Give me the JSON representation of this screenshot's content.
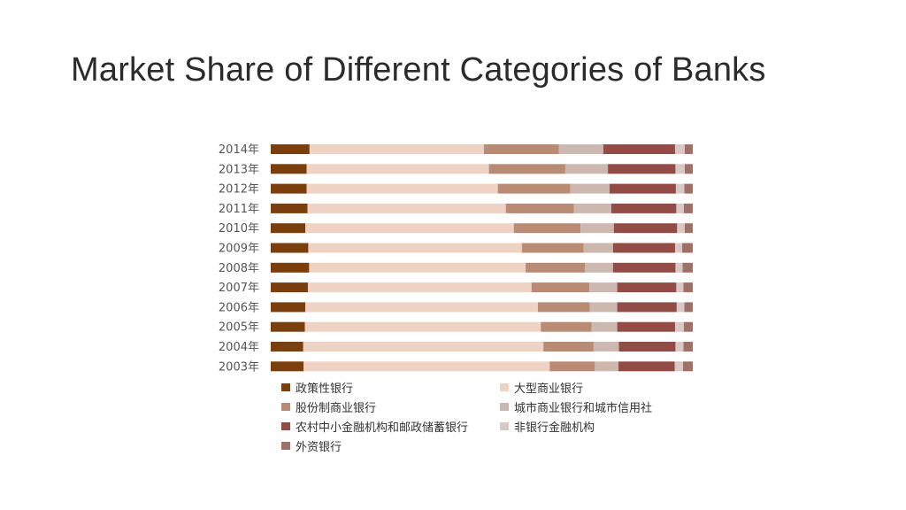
{
  "slide": {
    "title": "Market Share of Different Categories of Banks"
  },
  "chart_data": {
    "type": "bar",
    "orientation": "horizontal",
    "stacked": true,
    "percent_stacked": true,
    "title": "",
    "xlabel": "",
    "ylabel": "",
    "xlim": [
      0,
      100
    ],
    "grid": false,
    "legend_position": "bottom",
    "categories": [
      "2014年",
      "2013年",
      "2012年",
      "2011年",
      "2010年",
      "2009年",
      "2008年",
      "2007年",
      "2006年",
      "2005年",
      "2004年",
      "2003年"
    ],
    "series": [
      {
        "name": "政策性银行",
        "color": "#7a3f0c",
        "values": [
          9.2,
          8.5,
          8.5,
          8.7,
          8.2,
          8.9,
          9.1,
          8.8,
          8.2,
          8.1,
          7.7,
          7.8
        ]
      },
      {
        "name": "大型商业银行",
        "color": "#eed2c4",
        "values": [
          41.3,
          43.2,
          45.3,
          47.0,
          49.4,
          50.6,
          51.3,
          53.0,
          55.1,
          55.9,
          56.9,
          58.3
        ]
      },
      {
        "name": "股份制商业银行",
        "color": "#b98b75",
        "values": [
          17.8,
          18.1,
          17.2,
          16.1,
          15.8,
          14.6,
          14.1,
          13.7,
          12.3,
          12.0,
          11.9,
          10.7
        ]
      },
      {
        "name": "城市商业银行和城市信用社",
        "color": "#cdb8b0",
        "values": [
          10.5,
          10.1,
          9.3,
          8.9,
          7.9,
          7.0,
          6.6,
          6.6,
          6.5,
          6.1,
          6.0,
          5.6
        ]
      },
      {
        "name": "农村中小金融机构和邮政储蓄银行",
        "color": "#924c45",
        "values": [
          17.0,
          16.0,
          15.7,
          15.4,
          15.0,
          14.7,
          14.8,
          14.0,
          14.1,
          13.7,
          13.4,
          13.3
        ]
      },
      {
        "name": "非银行金融机构",
        "color": "#d8c9c4",
        "values": [
          2.3,
          2.2,
          2.0,
          1.8,
          1.8,
          1.7,
          1.7,
          1.7,
          1.8,
          2.1,
          1.9,
          2.0
        ]
      },
      {
        "name": "外资银行",
        "color": "#9e7067",
        "values": [
          1.9,
          1.9,
          2.0,
          2.1,
          1.9,
          2.5,
          2.4,
          2.2,
          2.0,
          2.1,
          2.2,
          2.3
        ]
      }
    ]
  }
}
